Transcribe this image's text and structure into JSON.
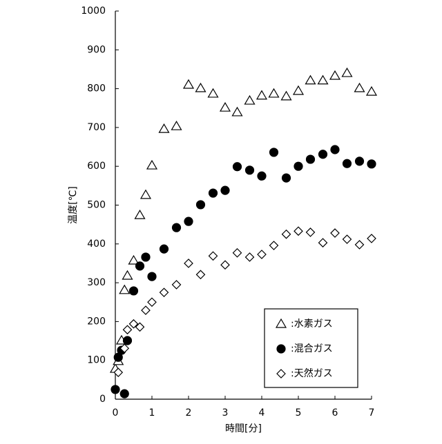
{
  "chart_data": {
    "type": "scatter",
    "xlabel": "時間[分]",
    "ylabel": "温度[℃]",
    "xlim": [
      0,
      7
    ],
    "xticks": [
      0,
      1,
      2,
      3,
      4,
      5,
      6,
      7
    ],
    "ylim": [
      0,
      1000
    ],
    "yticks": [
      0,
      100,
      200,
      300,
      400,
      500,
      600,
      700,
      800,
      900,
      1000
    ],
    "grid": false,
    "legend": "lower right",
    "series": [
      {
        "name": ":水素ガス",
        "marker": "triangle",
        "color": "#000000",
        "filled": false,
        "x": [
          0,
          0.08,
          0.17,
          0.25,
          0.33,
          0.5,
          0.67,
          0.83,
          1,
          1.33,
          1.67,
          2,
          2.33,
          2.67,
          3,
          3.33,
          3.67,
          4,
          4.33,
          4.67,
          5,
          5.33,
          5.67,
          6,
          6.33,
          6.67,
          7
        ],
        "values": [
          78,
          98,
          151,
          281,
          318,
          357,
          474,
          526,
          602,
          696,
          703,
          810,
          801,
          787,
          751,
          739,
          769,
          782,
          787,
          780,
          794,
          821,
          821,
          833,
          840,
          801,
          792
        ]
      },
      {
        "name": ":混合ガス",
        "marker": "circle",
        "color": "#000000",
        "filled": true,
        "x": [
          0,
          0.08,
          0.17,
          0.25,
          0.33,
          0.5,
          0.67,
          0.83,
          1,
          1.33,
          1.67,
          2,
          2.33,
          2.67,
          3,
          3.33,
          3.67,
          4,
          4.33,
          4.67,
          5,
          5.33,
          5.67,
          6,
          6.33,
          6.67,
          7
        ],
        "values": [
          25,
          108,
          126,
          14,
          151,
          279,
          343,
          366,
          316,
          387,
          442,
          458,
          501,
          531,
          538,
          599,
          590,
          575,
          636,
          570,
          600,
          618,
          631,
          643,
          607,
          613,
          606
        ]
      },
      {
        "name": ":天然ガス",
        "marker": "diamond",
        "color": "#000000",
        "filled": false,
        "x": [
          0.08,
          0.25,
          0.33,
          0.5,
          0.67,
          0.83,
          1,
          1.33,
          1.67,
          2,
          2.33,
          2.67,
          3,
          3.33,
          3.67,
          4,
          4.33,
          4.67,
          5,
          5.33,
          5.67,
          6,
          6.33,
          6.67,
          7
        ],
        "values": [
          69,
          131,
          179,
          194,
          186,
          229,
          250,
          275,
          295,
          350,
          321,
          369,
          346,
          377,
          366,
          373,
          396,
          425,
          433,
          430,
          403,
          428,
          412,
          398,
          414
        ]
      }
    ]
  }
}
